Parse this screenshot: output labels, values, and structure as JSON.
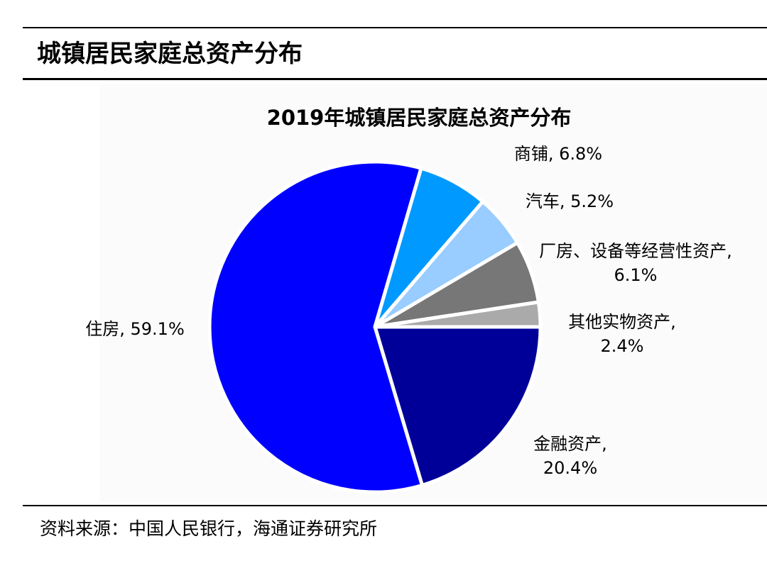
{
  "header": {
    "title": "城镇居民家庭总资产分布"
  },
  "chart_data": {
    "type": "pie",
    "title": "2019年城镇居民家庭总资产分布",
    "slices": [
      {
        "name": "金融资产",
        "value": 20.4,
        "label_lines": [
          "金融资产,",
          "20.4%"
        ],
        "color": "#000099"
      },
      {
        "name": "住房",
        "value": 59.1,
        "label_lines": [
          "住房, 59.1%"
        ],
        "color": "#0000ff"
      },
      {
        "name": "商铺",
        "value": 6.8,
        "label_lines": [
          "商铺, 6.8%"
        ],
        "color": "#0099ff"
      },
      {
        "name": "汽车",
        "value": 5.2,
        "label_lines": [
          "汽车, 5.2%"
        ],
        "color": "#99ccff"
      },
      {
        "name": "厂房、设备等经营性资产",
        "value": 6.1,
        "label_lines": [
          "厂房、设备等经营性资产,",
          "6.1%"
        ],
        "color": "#777777"
      },
      {
        "name": "其他实物资产",
        "value": 2.4,
        "label_lines": [
          "其他实物资产,",
          "2.4%"
        ],
        "color": "#aaaaaa"
      }
    ],
    "start_angle_deg": 0,
    "direction": "clockwise",
    "legend": "none"
  },
  "footer": {
    "source": "资料来源：中国人民银行，海通证券研究所"
  }
}
